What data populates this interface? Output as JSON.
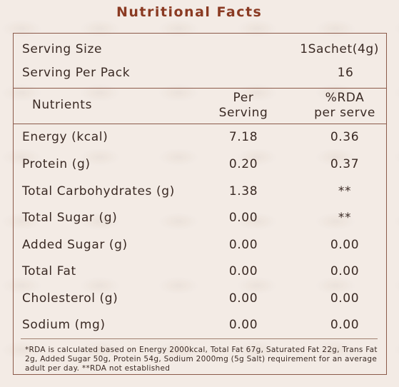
{
  "title": "Nutritional Facts",
  "serving": {
    "size_label": "Serving Size",
    "size_value": "1Sachet(4g)",
    "per_pack_label": "Serving Per Pack",
    "per_pack_value": "16"
  },
  "headers": {
    "nutrients": "Nutrients",
    "per_serving_1": "Per",
    "per_serving_2": "Serving",
    "rda_1": "%RDA",
    "rda_2": "per serve"
  },
  "rows": [
    {
      "name": "Energy (kcal)",
      "per_serving": "7.18",
      "rda": "0.36"
    },
    {
      "name": "Protein (g)",
      "per_serving": "0.20",
      "rda": "0.37"
    },
    {
      "name": "Total Carbohydrates (g)",
      "per_serving": "1.38",
      "rda": "**"
    },
    {
      "name": "Total Sugar (g)",
      "per_serving": "0.00",
      "rda": "**"
    },
    {
      "name": "Added Sugar (g)",
      "per_serving": "0.00",
      "rda": "0.00"
    },
    {
      "name": "Total Fat",
      "per_serving": "0.00",
      "rda": "0.00"
    },
    {
      "name": "Cholesterol (g)",
      "per_serving": "0.00",
      "rda": "0.00"
    },
    {
      "name": "Sodium (mg)",
      "per_serving": "0.00",
      "rda": "0.00"
    }
  ],
  "footnote": "*RDA is calculated based on Energy 2000kcal, Total Fat 67g, Saturated Fat 22g, Trans Fat 2g, Added Sugar 50g, Protein 54g, Sodium 2000mg (5g Salt) requirement for an average adult per day.  **RDA not established",
  "colors": {
    "title": "#8a3a22",
    "border": "#8b5a4a",
    "background": "#f3ebe5"
  }
}
